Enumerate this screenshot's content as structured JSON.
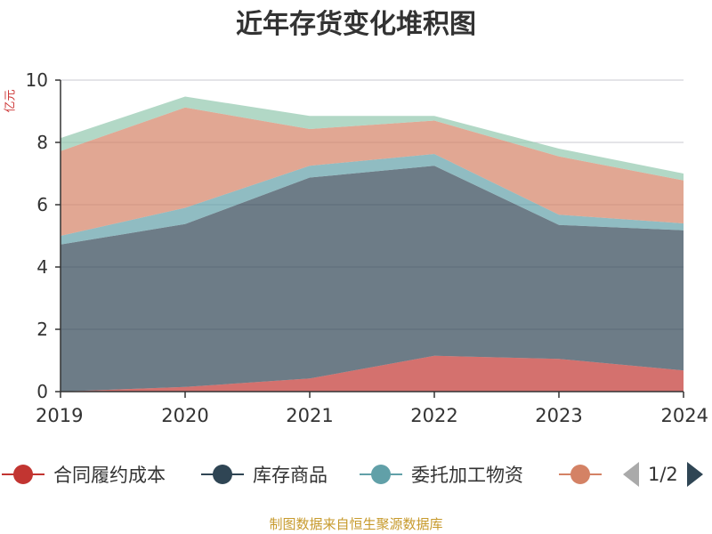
{
  "title": "近年存货变化堆积图",
  "source_note": "制图数据来自恒生聚源数据库",
  "legend": {
    "page_indicator": "1/2",
    "icons": {
      "prev": "triangle-left-icon",
      "next": "triangle-right-icon"
    }
  },
  "chart_data": {
    "type": "area",
    "stacked": true,
    "categories": [
      "2019",
      "2020",
      "2021",
      "2022",
      "2023",
      "2024"
    ],
    "ylabel": "亿元",
    "ylim": [
      0,
      10
    ],
    "yticks": [
      0,
      2,
      4,
      6,
      8,
      10
    ],
    "grid": true,
    "legend_position": "bottom",
    "series": [
      {
        "name": "合同履约成本",
        "color": "#c23531",
        "values": [
          0.0,
          0.15,
          0.42,
          1.15,
          1.05,
          0.68
        ]
      },
      {
        "name": "库存商品",
        "color": "#2f4554",
        "values": [
          4.72,
          5.23,
          6.45,
          6.1,
          4.3,
          4.5
        ]
      },
      {
        "name": "委托加工物资",
        "color": "#61a0a8",
        "values": [
          0.28,
          0.52,
          0.38,
          0.38,
          0.33,
          0.22
        ]
      },
      {
        "name": "",
        "color": "#d48265",
        "values": [
          2.72,
          3.22,
          1.18,
          1.07,
          1.87,
          1.38
        ]
      },
      {
        "name": "",
        "color": "#91c7ae",
        "values": [
          0.42,
          0.35,
          0.42,
          0.15,
          0.25,
          0.22
        ]
      }
    ]
  }
}
